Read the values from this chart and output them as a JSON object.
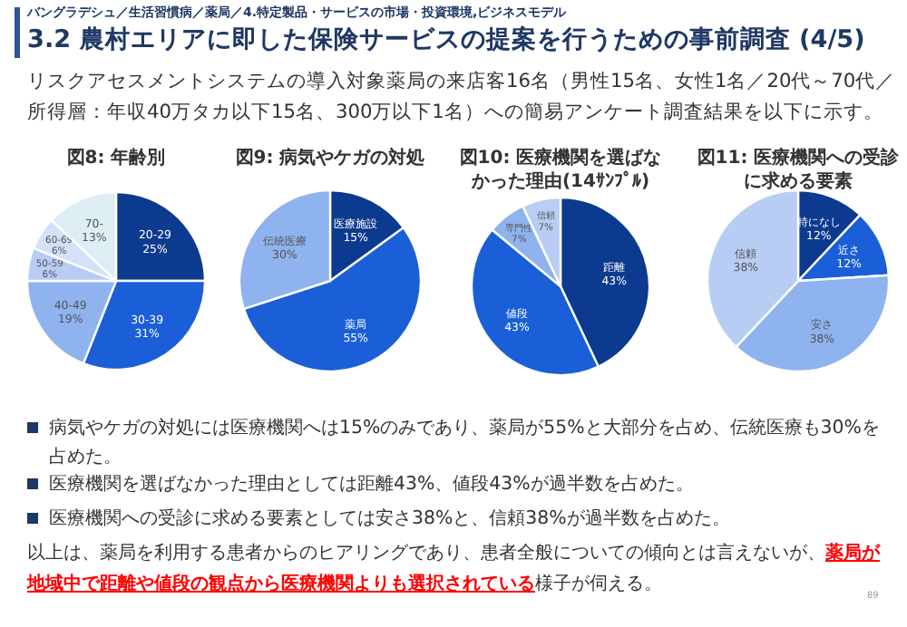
{
  "chart_data": [
    {
      "type": "other",
      "title": "3.2 農村エリアに即した保険サービスの提案を行うための事前調査 (4/5)",
      "subtitle": "リスクアセスメントシステムの導入対象薬局の来店客16名（男性15名、女性1名／20代～70代／所得層：年収40万タカ以下15名、300万以下1名）への簡易アンケート調査結果を以下に示す。",
      "annotations": [
        "バングラデシュ／生活習慣病／薬局／4.特定製品・サービスの市場・投資環境,ビジネスモデル"
      ]
    },
    {
      "type": "pie",
      "title": "図8: 年齢別",
      "categories": [
        "20-29",
        "30-39",
        "40-49",
        "50-59",
        "60-69",
        "70-"
      ],
      "values": [
        25,
        31,
        19,
        6,
        6,
        13
      ],
      "value_labels": [
        "25%",
        "31%",
        "19%",
        "6%",
        "6%",
        "13%"
      ],
      "colors": [
        "#0c3a8e",
        "#1a5fd8",
        "#8fb3ef",
        "#b8cdf4",
        "#d5e1f8",
        "#ddeff4"
      ]
    },
    {
      "type": "pie",
      "title": "図9: 病気やケガの対処",
      "categories": [
        "医療施設",
        "薬局",
        "伝統医療"
      ],
      "values": [
        15,
        55,
        30
      ],
      "value_labels": [
        "15%",
        "55%",
        "30%"
      ],
      "colors": [
        "#0c3a8e",
        "#1a5fd8",
        "#8fb3ef"
      ]
    },
    {
      "type": "pie",
      "title": "図10: 医療機関を選ばなかった理由(14ｻﾝﾌﾟﾙ)",
      "categories": [
        "距離",
        "値段",
        "専門性",
        "信頼"
      ],
      "values": [
        43,
        43,
        7,
        7
      ],
      "value_labels": [
        "43%",
        "43%",
        "7%",
        "7%"
      ],
      "colors": [
        "#0c3a8e",
        "#1a5fd8",
        "#8fb3ef",
        "#b8cdf4"
      ]
    },
    {
      "type": "pie",
      "title": "図11: 医療機関への受診に求める要素",
      "categories": [
        "特になし",
        "近さ",
        "安さ",
        "信頼"
      ],
      "values": [
        12,
        12,
        38,
        38
      ],
      "value_labels": [
        "12%",
        "12%",
        "38%",
        "38%"
      ],
      "colors": [
        "#0c3a8e",
        "#1a5fd8",
        "#8fb3ef",
        "#b8cdf4"
      ]
    },
    {
      "type": "other",
      "annotations": [
        "病気やケガの対処には医療機関へは15%のみであり、薬局が55%と大部分を占め、伝統医療も30%を占めた。",
        "医療機関を選ばなかった理由としては距離43%、値段43%が過半数を占めた。",
        "医療機関への受診に求める要素としては安さ38%と、信頼38%が過半数を占めた。",
        "以上は、薬局を利用する患者からのヒアリングであり、患者全般についての傾向とは言えないが、",
        "薬局が地域中で距離や値段の観点から医療機関よりも選択されている",
        "様子が伺える。",
        "89"
      ]
    }
  ]
}
